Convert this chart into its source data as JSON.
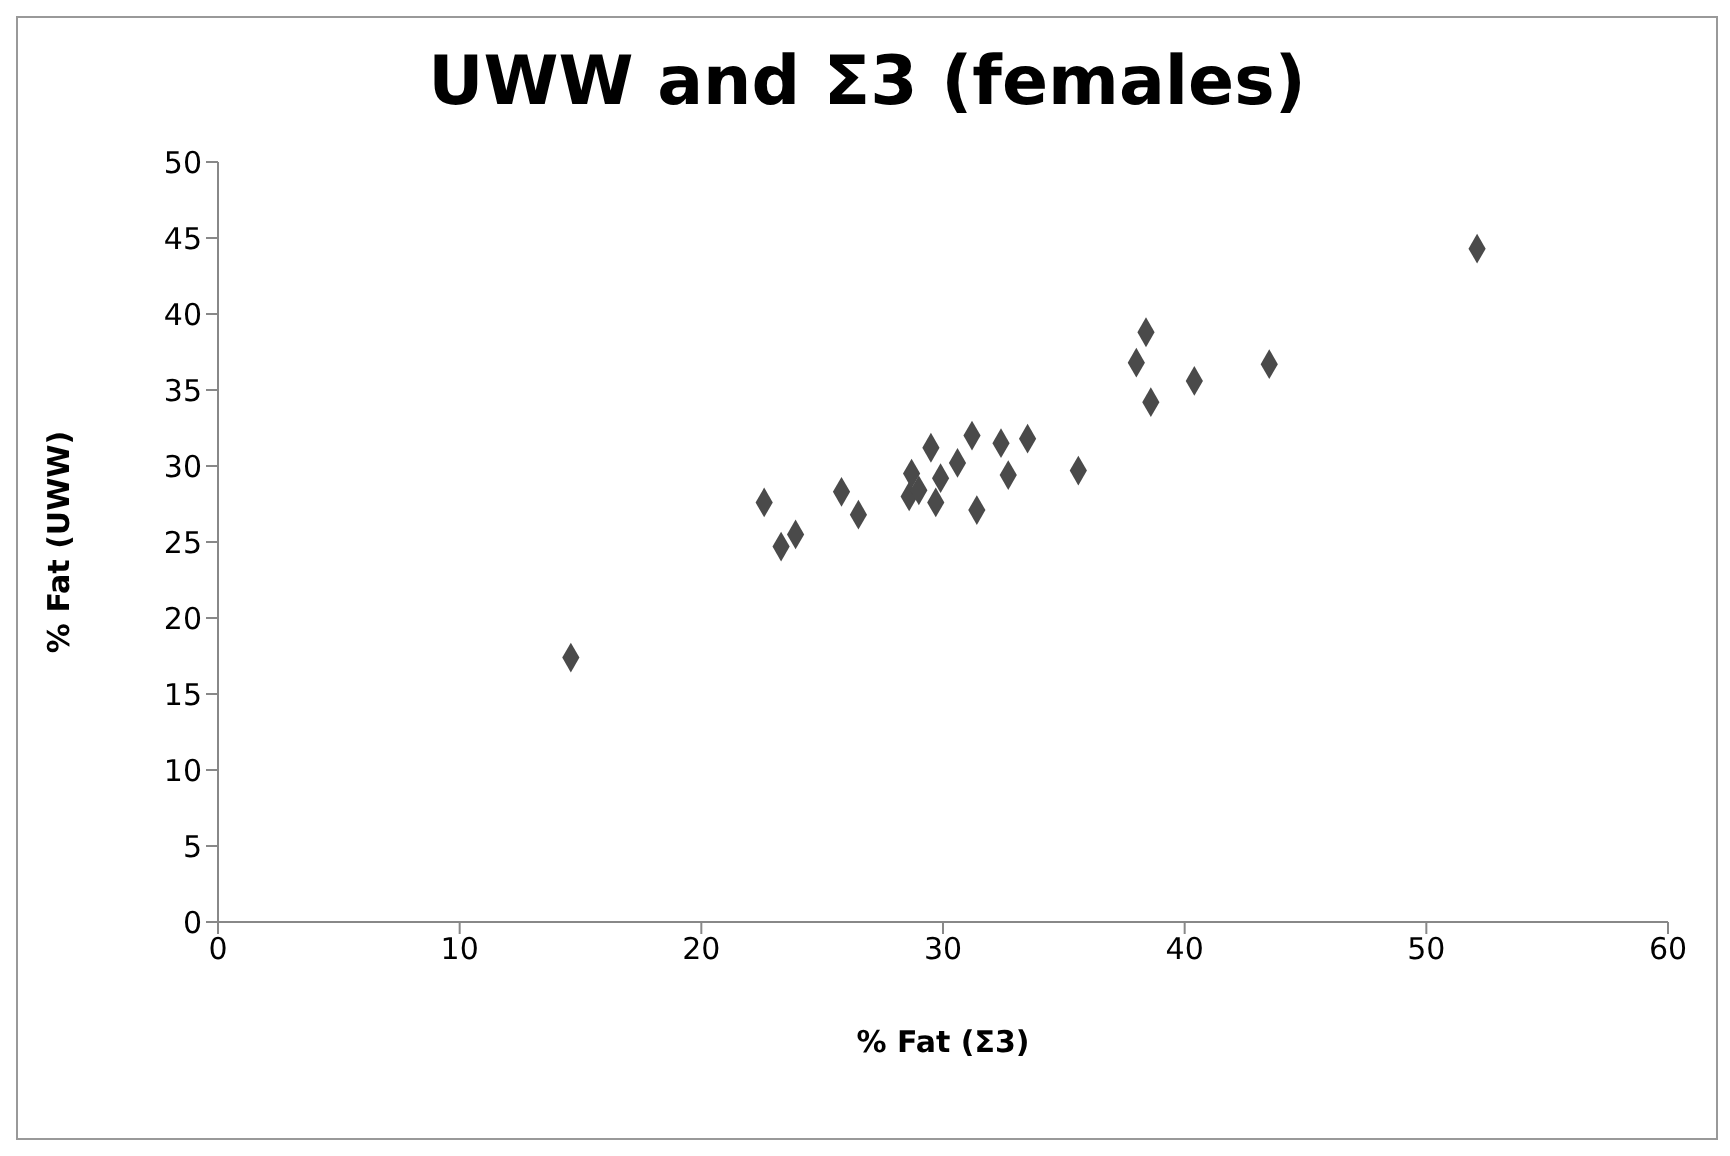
{
  "chart_data": {
    "type": "scatter",
    "title": "UWW and Σ3 (females)",
    "xlabel": "% Fat (Σ3)",
    "ylabel": "% Fat (UWW)",
    "x": [
      14.6,
      22.6,
      23.3,
      23.9,
      25.8,
      26.5,
      28.6,
      28.7,
      29.0,
      29.5,
      29.9,
      29.7,
      30.6,
      31.2,
      31.4,
      32.4,
      32.7,
      33.5,
      35.6,
      38.0,
      38.4,
      38.6,
      40.4,
      43.5,
      52.1
    ],
    "series": [
      {
        "color": "#4a4a4a",
        "values": [
          17.4,
          27.6,
          24.7,
          25.5,
          28.3,
          26.8,
          28.0,
          29.5,
          28.4,
          31.2,
          29.2,
          27.6,
          30.2,
          32.0,
          27.1,
          31.5,
          29.4,
          31.8,
          29.7,
          36.8,
          38.8,
          34.2,
          35.6,
          36.7,
          44.3
        ]
      }
    ],
    "xlim": [
      0,
      60
    ],
    "xticks": [
      0,
      10,
      20,
      30,
      40,
      50,
      60
    ],
    "ylim": [
      0,
      50
    ],
    "yticks": [
      0,
      5,
      10,
      15,
      20,
      25,
      30,
      35,
      40,
      45,
      50
    ],
    "marker": "diamond"
  }
}
